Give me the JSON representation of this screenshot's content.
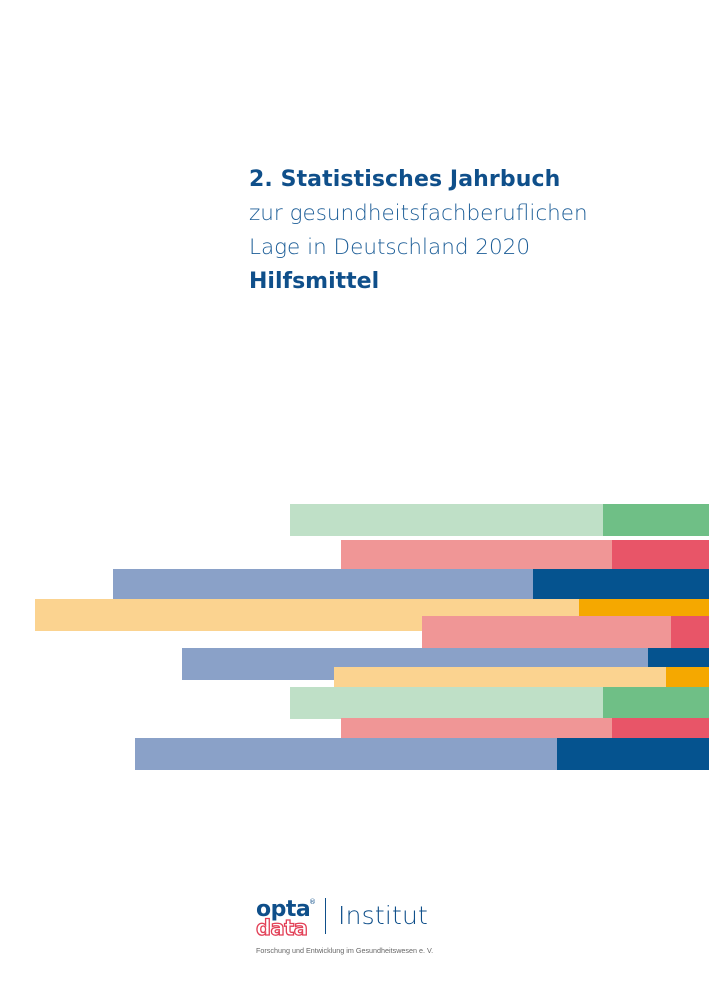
{
  "cover": {
    "title_main": "2. Statistisches Jahrbuch",
    "subtitle_line1": "zur gesundheitsfachberuflichen",
    "subtitle_line2": "Lage in Deutschland 2020",
    "topic": "Hilfsmittel"
  },
  "logo": {
    "opta": "opta",
    "data": "data",
    "registered": "®",
    "institut": "Institut",
    "tagline": "Forschung und Entwicklung im Gesundheitswesen e. V."
  },
  "colors": {
    "title_blue": "#0f4f8a",
    "green_light": "#bfe0c7",
    "green": "#6fbf86",
    "red_light": "#f09696",
    "red": "#e85568",
    "blue_light": "#8aa1c8",
    "blue": "#05538f",
    "yellow_light": "#fbd390",
    "yellow": "#f5a800"
  }
}
